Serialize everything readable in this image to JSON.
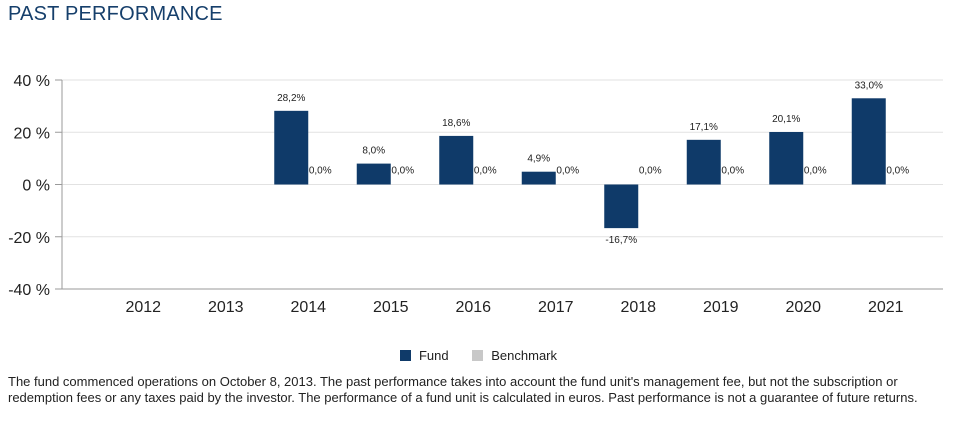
{
  "header": {
    "title": "PAST PERFORMANCE"
  },
  "colors": {
    "fund": "#0f3a69",
    "benchmark": "#c8c8c8",
    "grid": "#e2e2e2",
    "axis": "#9a9a9a"
  },
  "chart_data": {
    "type": "bar",
    "title": "PAST PERFORMANCE",
    "xlabel": "",
    "ylabel": "",
    "ylim": [
      -40,
      40
    ],
    "yticks": [
      40,
      20,
      0,
      -20,
      -40
    ],
    "ytick_labels": [
      "40 %",
      "20 %",
      "0 %",
      "-20 %",
      "-40 %"
    ],
    "grid": true,
    "categories": [
      "2012",
      "2013",
      "2014",
      "2015",
      "2016",
      "2017",
      "2018",
      "2019",
      "2020",
      "2021"
    ],
    "series": [
      {
        "name": "Fund",
        "values": [
          null,
          null,
          28.2,
          8.0,
          18.6,
          4.9,
          -16.7,
          17.1,
          20.1,
          33.0
        ],
        "labels": [
          "",
          "",
          "28,2%",
          "8,0%",
          "18,6%",
          "4,9%",
          "-16,7%",
          "17,1%",
          "20,1%",
          "33,0%"
        ]
      },
      {
        "name": "Benchmark",
        "values": [
          null,
          null,
          0.0,
          0.0,
          0.0,
          0.0,
          0.0,
          0.0,
          0.0,
          0.0
        ],
        "labels": [
          "",
          "",
          "0,0%",
          "0,0%",
          "0,0%",
          "0,0%",
          "0,0%",
          "0,0%",
          "0,0%",
          "0,0%"
        ]
      }
    ],
    "legend": [
      "Fund",
      "Benchmark"
    ],
    "legend_position": "bottom-center"
  },
  "footnote": "The fund commenced operations on October 8, 2013. The past performance takes into account the fund unit's management fee, but not the subscription or redemption fees or any taxes paid by the investor. The performance of a fund unit is calculated in euros. Past performance is not a guarantee of future returns."
}
